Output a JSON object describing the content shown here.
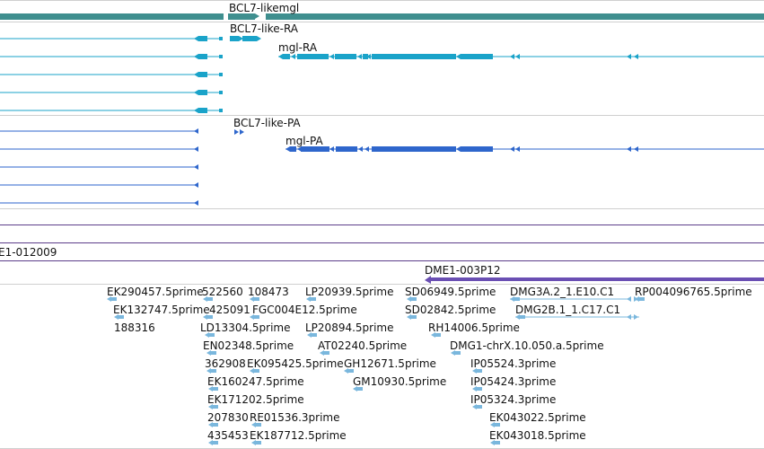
{
  "tracks": {
    "gene": {
      "label": "BCL7-likemgl",
      "color": "#3f8f8f"
    },
    "mrna": {
      "labels": [
        "BCL7-like-RA",
        "mgl-RA"
      ],
      "color": "#1aa3c9"
    },
    "protein": {
      "labels": [
        "BCL7-like-PA",
        "mgl-PA"
      ],
      "color": "#2e66cc"
    },
    "clone_region": {
      "label": "E1-012009",
      "line_color": "#5c3e8a"
    },
    "bac": {
      "label": "DME1-003P12",
      "color": "#6a4fb3"
    },
    "ests": {
      "color": "#7ab7dd",
      "labels": [
        "EK290457.5prime",
        "522560",
        "108473",
        "LP20939.5prime",
        "SD06949.5prime",
        "DMG3A.2_1.E10.C1",
        "RP004096765.5prime",
        "EK132747.5prime",
        "425091",
        "FGC004E12.5prime",
        "SD02842.5prime",
        "DMG2B.1_1.C17.C1",
        "188316",
        "LD13304.5prime",
        "LP20894.5prime",
        "RH14006.5prime",
        "EN02348.5prime",
        "AT02240.5prime",
        "DMG1-chrX.10.050.a.5prime",
        "362908",
        "EK095425.5prime",
        "GH12671.5prime",
        "IP05524.3prime",
        "EK160247.5prime",
        "GM10930.5prime",
        "IP05424.3prime",
        "EK171202.5prime",
        "IP05324.3prime",
        "207830",
        "RE01536.3prime",
        "EK043022.5prime",
        "435453",
        "EK187712.5prime",
        "EK043018.5prime"
      ]
    }
  }
}
